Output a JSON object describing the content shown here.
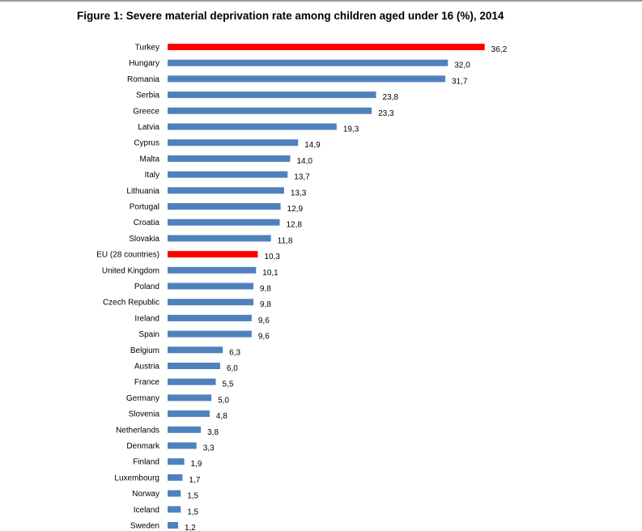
{
  "title": "Figure 1: Severe material deprivation rate among children aged under 16 (%), 2014",
  "colors": {
    "default": "#4f81bd",
    "highlight": "#ff0000"
  },
  "chart_data": {
    "type": "bar",
    "orientation": "horizontal",
    "title": "Figure 1: Severe material deprivation rate among children aged under 16 (%), 2014",
    "xlabel": "",
    "ylabel": "",
    "xlim": [
      0,
      40
    ],
    "categories": [
      "Turkey",
      "Hungary",
      "Romania",
      "Serbia",
      "Greece",
      "Latvia",
      "Cyprus",
      "Malta",
      "Italy",
      "Lithuania",
      "Portugal",
      "Croatia",
      "Slovakia",
      "EU (28 countries)",
      "United Kingdom",
      "Poland",
      "Czech Republic",
      "Ireland",
      "Spain",
      "Belgium",
      "Austria",
      "France",
      "Germany",
      "Slovenia",
      "Netherlands",
      "Denmark",
      "Finland",
      "Luxembourg",
      "Norway",
      "Iceland",
      "Sweden"
    ],
    "values": [
      36.2,
      32.0,
      31.7,
      23.8,
      23.3,
      19.3,
      14.9,
      14.0,
      13.7,
      13.3,
      12.9,
      12.8,
      11.8,
      10.3,
      10.1,
      9.8,
      9.8,
      9.6,
      9.6,
      6.3,
      6.0,
      5.5,
      5.0,
      4.8,
      3.8,
      3.3,
      1.9,
      1.7,
      1.5,
      1.5,
      1.2
    ],
    "value_labels": [
      "36,2",
      "32,0",
      "31,7",
      "23,8",
      "23,3",
      "19,3",
      "14,9",
      "14,0",
      "13,7",
      "13,3",
      "12,9",
      "12,8",
      "11,8",
      "10,3",
      "10,1",
      "9,8",
      "9,8",
      "9,6",
      "9,6",
      "6,3",
      "6,0",
      "5,5",
      "5,0",
      "4,8",
      "3,8",
      "3,3",
      "1,9",
      "1,7",
      "1,5",
      "1,5",
      "1,2"
    ],
    "highlighted": [
      "Turkey",
      "EU (28 countries)"
    ]
  }
}
